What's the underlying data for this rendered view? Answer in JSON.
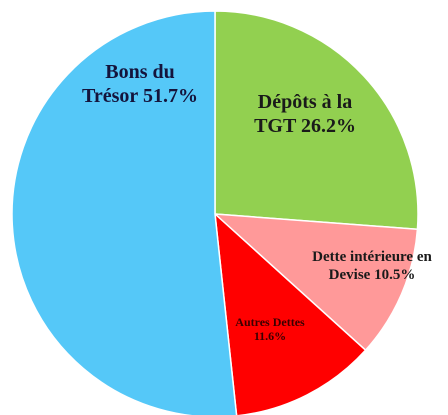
{
  "chart_data": {
    "type": "pie",
    "categories": [
      "Dépôts à la TGT",
      "Dette intérieure en Devise",
      "Autres Dettes",
      "Bons du Trésor"
    ],
    "values": [
      26.2,
      10.5,
      11.6,
      51.7
    ],
    "value_labels": [
      "26.2%",
      "10.5%",
      "11.6%",
      "51.7%"
    ],
    "colors": [
      "#92d050",
      "#ff9999",
      "#ff0000",
      "#55c8f8"
    ]
  }
}
